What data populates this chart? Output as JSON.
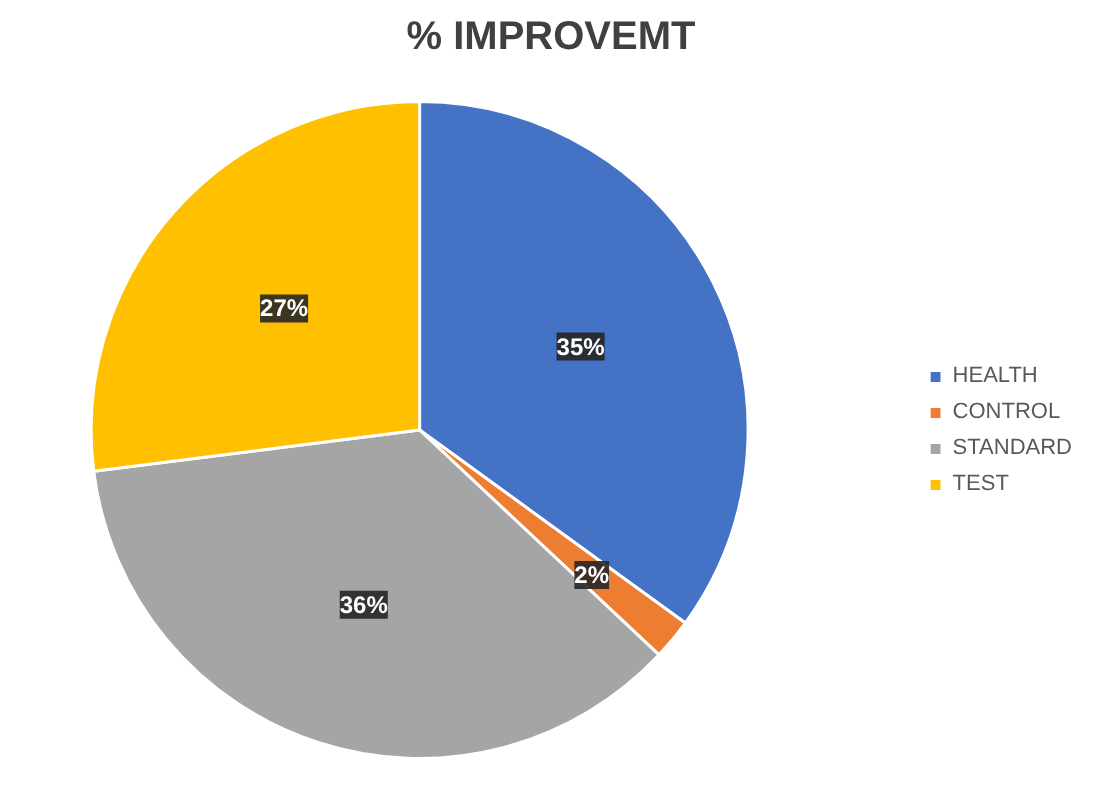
{
  "chart_data": {
    "type": "pie",
    "title": "% IMPROVEMT",
    "categories": [
      "HEALTH",
      "CONTROL",
      "STANDARD",
      "TEST"
    ],
    "values": [
      35,
      2,
      36,
      27
    ],
    "colors": [
      "#4472c4",
      "#ed7d31",
      "#a5a5a5",
      "#ffc000"
    ],
    "value_labels": [
      "35%",
      "2%",
      "36%",
      "27%"
    ],
    "legend": "right"
  }
}
